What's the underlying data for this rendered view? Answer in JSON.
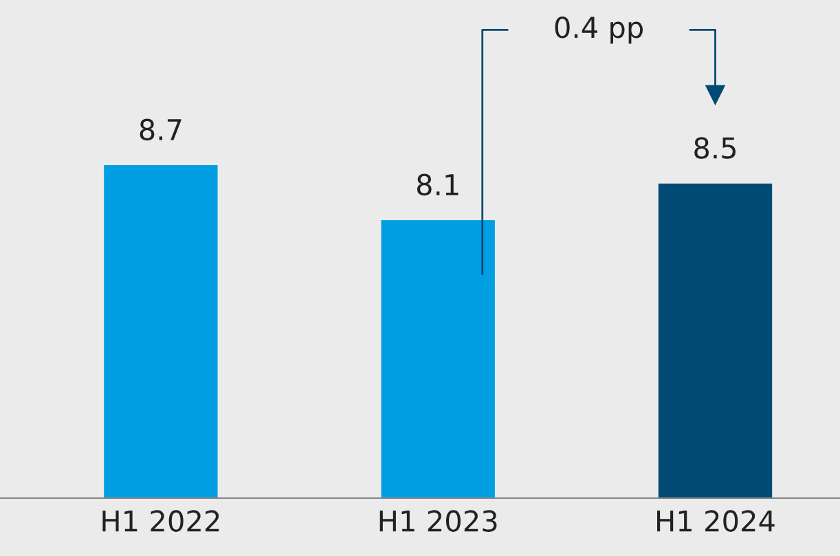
{
  "chart_data": {
    "type": "bar",
    "categories": [
      "H1 2022",
      "H1 2023",
      "H1 2024"
    ],
    "values": [
      8.7,
      8.1,
      8.5
    ],
    "colors": [
      "#009fe3",
      "#009fe3",
      "#004a75"
    ],
    "ylim": [
      5.07,
      10.5
    ],
    "data_labels": true,
    "annotations": [
      "0.4 pp"
    ],
    "grid": false
  }
}
